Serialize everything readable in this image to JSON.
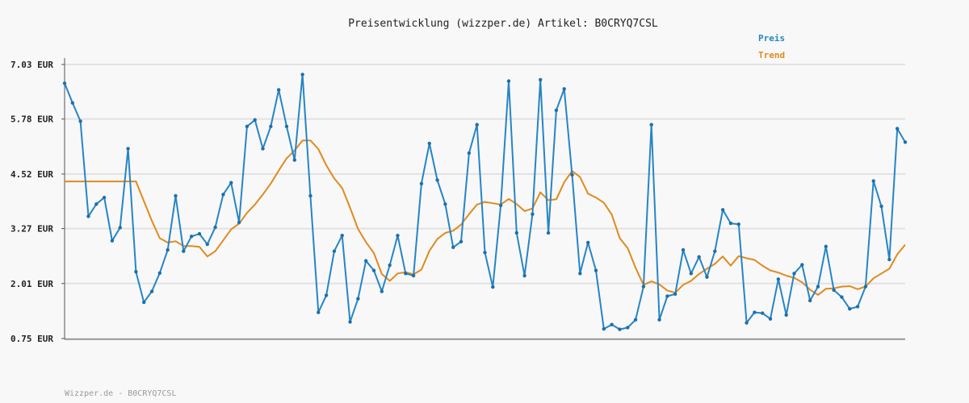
{
  "chart_data": {
    "type": "line",
    "title": "Preisentwicklung (wizzper.de) Artikel: B0CRYQ7CSL",
    "footer": "Wizzper.de - B0CRYQ7CSL",
    "ylabel": "",
    "xlabel": "",
    "ylim": [
      0.75,
      7.03
    ],
    "yticks": [
      7.03,
      5.78,
      4.52,
      3.27,
      2.01,
      0.75
    ],
    "ytick_labels": [
      "7.03 EUR",
      "5.78 EUR",
      "4.52 EUR",
      "3.27 EUR",
      "2.01 EUR",
      "0.75 EUR"
    ],
    "grid": true,
    "legend_position": "top-right",
    "colors": {
      "preis": "#2585c7",
      "trend": "#e08a1e",
      "grid": "#e2e2e2",
      "axis": "#555555"
    },
    "series": [
      {
        "name": "Preis",
        "values": [
          6.6,
          6.15,
          5.73,
          3.55,
          3.83,
          3.98,
          2.99,
          3.29,
          5.1,
          2.28,
          1.58,
          1.83,
          2.25,
          2.78,
          4.02,
          2.75,
          3.09,
          3.15,
          2.91,
          3.3,
          4.05,
          4.32,
          3.41,
          5.61,
          5.76,
          5.1,
          5.61,
          6.45,
          5.61,
          4.84,
          6.8,
          4.02,
          1.35,
          1.74,
          2.75,
          3.11,
          1.13,
          1.66,
          2.53,
          2.31,
          1.83,
          2.43,
          3.11,
          2.24,
          2.19,
          4.3,
          5.22,
          4.38,
          3.83,
          2.84,
          2.97,
          5.0,
          5.65,
          2.72,
          1.93,
          3.8,
          6.65,
          3.17,
          2.19,
          3.6,
          6.68,
          3.17,
          5.98,
          6.47,
          4.5,
          2.24,
          2.95,
          2.31,
          0.97,
          1.07,
          0.96,
          1.0,
          1.18,
          1.94,
          5.65,
          1.18,
          1.72,
          1.77,
          2.78,
          2.24,
          2.62,
          2.16,
          2.75,
          3.7,
          3.39,
          3.37,
          1.11,
          1.35,
          1.33,
          1.2,
          2.11,
          1.29,
          2.24,
          2.44,
          1.62,
          1.94,
          2.86,
          1.86,
          1.7,
          1.43,
          1.48,
          1.94,
          4.36,
          3.78,
          2.56,
          5.56,
          5.25
        ]
      },
      {
        "name": "Trend",
        "values": [
          4.35,
          4.35,
          4.35,
          4.35,
          4.35,
          4.35,
          4.35,
          4.35,
          4.35,
          4.35,
          3.9,
          3.45,
          3.05,
          2.95,
          2.98,
          2.87,
          2.87,
          2.85,
          2.63,
          2.75,
          3.0,
          3.25,
          3.38,
          3.63,
          3.82,
          4.05,
          4.3,
          4.6,
          4.88,
          5.06,
          5.29,
          5.29,
          5.09,
          4.72,
          4.42,
          4.2,
          3.75,
          3.26,
          2.96,
          2.71,
          2.23,
          2.07,
          2.24,
          2.27,
          2.22,
          2.33,
          2.76,
          3.03,
          3.17,
          3.22,
          3.36,
          3.6,
          3.82,
          3.88,
          3.85,
          3.82,
          3.95,
          3.83,
          3.67,
          3.73,
          4.1,
          3.92,
          3.94,
          4.33,
          4.59,
          4.45,
          4.07,
          3.98,
          3.86,
          3.59,
          3.05,
          2.82,
          2.37,
          1.98,
          2.06,
          1.99,
          1.85,
          1.8,
          1.98,
          2.07,
          2.23,
          2.35,
          2.46,
          2.63,
          2.42,
          2.64,
          2.59,
          2.55,
          2.42,
          2.31,
          2.26,
          2.19,
          2.14,
          2.04,
          1.87,
          1.75,
          1.89,
          1.9,
          1.94,
          1.95,
          1.88,
          1.94,
          2.13,
          2.24,
          2.35,
          2.68,
          2.9
        ]
      }
    ]
  }
}
